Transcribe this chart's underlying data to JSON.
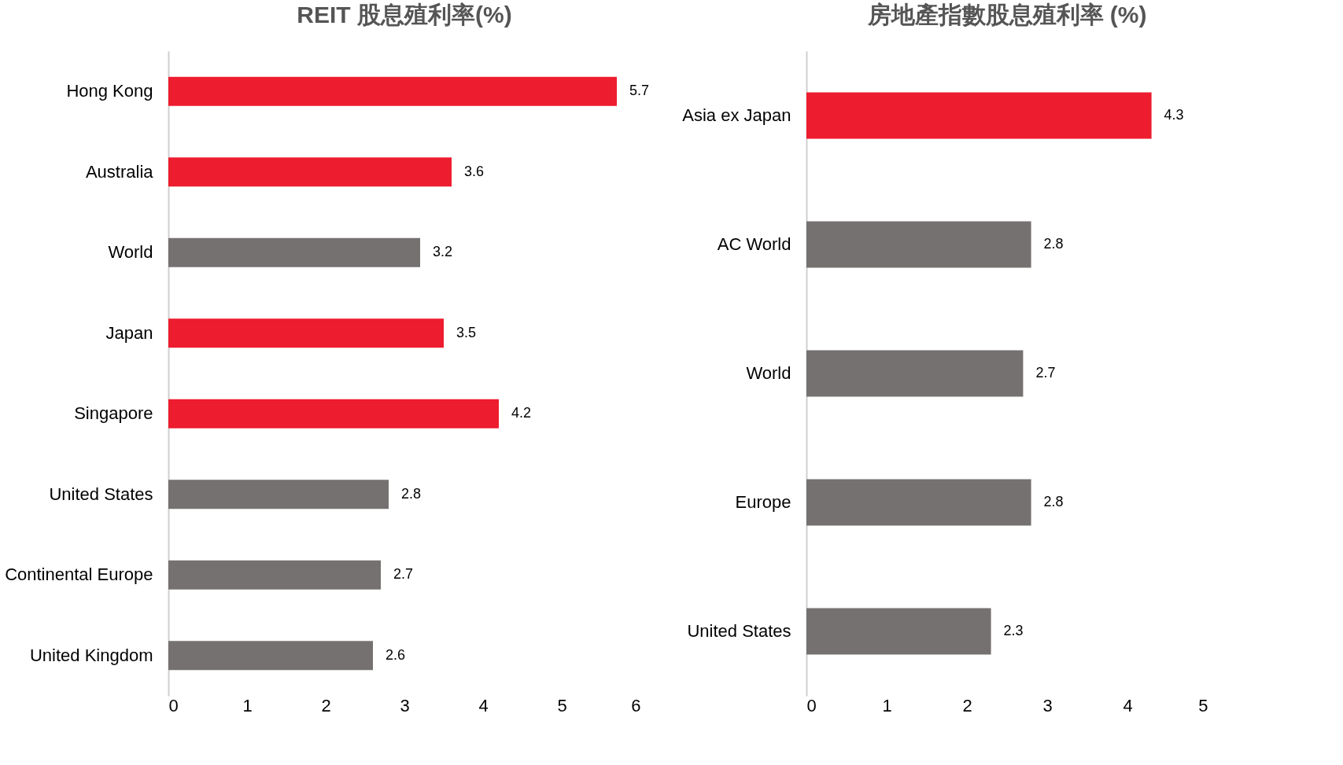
{
  "chart_data": [
    {
      "type": "bar",
      "orientation": "horizontal",
      "title": "REIT 股息殖利率(%)",
      "categories": [
        "Hong Kong",
        "Australia",
        "World",
        "Japan",
        "Singapore",
        "United States",
        "Continental Europe",
        "United Kingdom"
      ],
      "values": [
        5.7,
        3.6,
        3.2,
        3.5,
        4.2,
        2.8,
        2.7,
        2.6
      ],
      "colors": [
        "#ed1c2e",
        "#ed1c2e",
        "#767171",
        "#ed1c2e",
        "#ed1c2e",
        "#767171",
        "#767171",
        "#767171"
      ],
      "xlim": [
        0,
        6
      ],
      "xticks": [
        0,
        1,
        2,
        3,
        4,
        5,
        6
      ],
      "data_labels": true,
      "grid": false
    },
    {
      "type": "bar",
      "orientation": "horizontal",
      "title": "房地產指數股息殖利率 (%)",
      "categories": [
        "Asia ex Japan",
        "AC World",
        "World",
        "Europe",
        "United States"
      ],
      "values": [
        4.3,
        2.8,
        2.7,
        2.8,
        2.3
      ],
      "colors": [
        "#ed1c2e",
        "#767171",
        "#767171",
        "#767171",
        "#767171"
      ],
      "xlim": [
        0,
        5
      ],
      "xticks": [
        0,
        1,
        2,
        3,
        4,
        5
      ],
      "data_labels": true,
      "grid": false
    }
  ]
}
